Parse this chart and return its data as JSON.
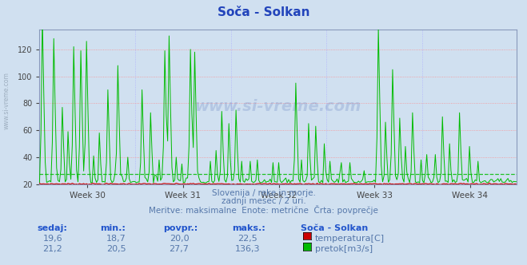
{
  "title": "Soča - Solkan",
  "bg_color": "#d0e0f0",
  "plot_bg_color": "#d0e0f0",
  "grid_color_h": "#ff8888",
  "grid_color_v": "#aaaaff",
  "temp_color": "#cc0000",
  "flow_color": "#00bb00",
  "temp_avg_color": "#cc0000",
  "flow_avg_color": "#00bb00",
  "temp_avg": 20.0,
  "flow_avg": 27.7,
  "ylim": [
    20,
    135
  ],
  "yticks": [
    20,
    40,
    60,
    80,
    100,
    120
  ],
  "week_labels": [
    "Week 30",
    "Week 31",
    "Week 32",
    "Week 33",
    "Week 34"
  ],
  "n_points": 336,
  "subtitle1": "Slovenija / reke in morje.",
  "subtitle2": "zadnji mesec / 2 uri.",
  "subtitle3": "Meritve: maksimalne  Enote: metrične  Črta: povprečje",
  "text_color": "#5577aa",
  "label_color": "#2255cc",
  "watermark": "www.si-vreme.com",
  "stats": {
    "sedaj": {
      "temp": "19,6",
      "flow": "21,2"
    },
    "min": {
      "temp": "18,7",
      "flow": "20,5"
    },
    "povpr": {
      "temp": "20,0",
      "flow": "27,7"
    },
    "maks": {
      "temp": "22,5",
      "flow": "136,3"
    }
  }
}
